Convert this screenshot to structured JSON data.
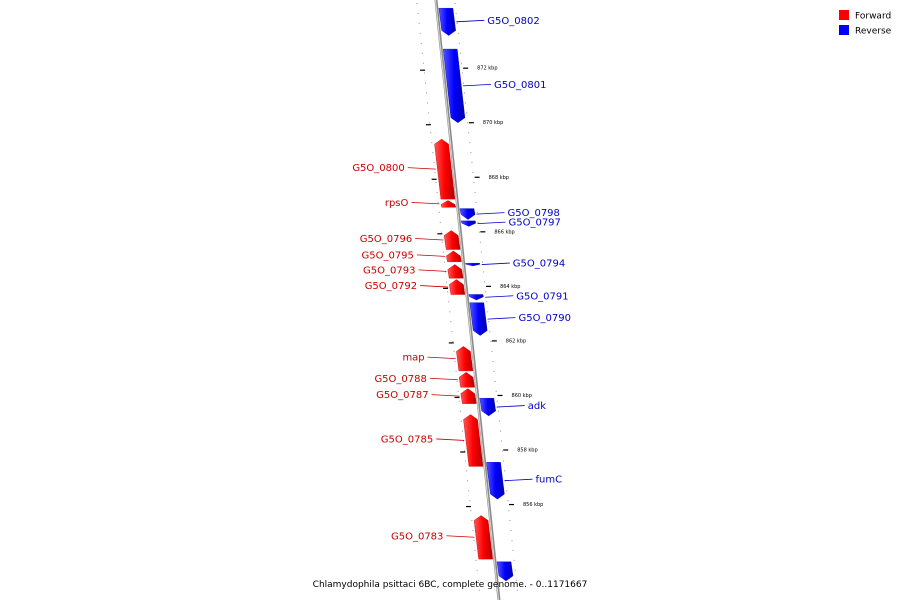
{
  "colors": {
    "forward": "#ff0000",
    "reverse": "#0000ff",
    "forward_text": "#cc0000",
    "reverse_text": "#0000cc",
    "axis": "#8a8a8a"
  },
  "legend": [
    {
      "label": "Forward",
      "color": "#ff0000"
    },
    {
      "label": "Reverse",
      "color": "#0000ff"
    }
  ],
  "caption": "Chlamydophila psittaci 6BC, complete genome. - 0..1171667",
  "ticks": [
    {
      "label": "872 kbp",
      "kbp": 872
    },
    {
      "label": "870 kbp",
      "kbp": 870
    },
    {
      "label": "868 kbp",
      "kbp": 868
    },
    {
      "label": "866 kbp",
      "kbp": 866
    },
    {
      "label": "864 kbp",
      "kbp": 864
    },
    {
      "label": "862 kbp",
      "kbp": 862
    },
    {
      "label": "860 kbp",
      "kbp": 860
    },
    {
      "label": "858 kbp",
      "kbp": 858
    },
    {
      "label": "856 kbp",
      "kbp": 856
    }
  ],
  "genes": [
    {
      "label": "G5O_0802",
      "strand": "reverse",
      "start_kbp": 873.2,
      "end_kbp": 874.2
    },
    {
      "label": "G5O_0801",
      "strand": "reverse",
      "start_kbp": 870.0,
      "end_kbp": 872.7
    },
    {
      "label": "G5O_0800",
      "strand": "forward",
      "start_kbp": 867.2,
      "end_kbp": 869.4
    },
    {
      "label": "rpsO",
      "strand": "forward",
      "start_kbp": 866.9,
      "end_kbp": 867.15
    },
    {
      "label": "G5O_0798",
      "strand": "reverse",
      "start_kbp": 866.45,
      "end_kbp": 866.85
    },
    {
      "label": "G5O_0797",
      "strand": "reverse",
      "start_kbp": 866.2,
      "end_kbp": 866.4
    },
    {
      "label": "G5O_0796",
      "strand": "forward",
      "start_kbp": 865.35,
      "end_kbp": 866.05
    },
    {
      "label": "G5O_0795",
      "strand": "forward",
      "start_kbp": 864.9,
      "end_kbp": 865.3
    },
    {
      "label": "G5O_0794",
      "strand": "reverse",
      "start_kbp": 864.75,
      "end_kbp": 864.85
    },
    {
      "label": "G5O_0793",
      "strand": "forward",
      "start_kbp": 864.3,
      "end_kbp": 864.8
    },
    {
      "label": "G5O_0792",
      "strand": "forward",
      "start_kbp": 863.7,
      "end_kbp": 864.25
    },
    {
      "label": "G5O_0791",
      "strand": "reverse",
      "start_kbp": 863.5,
      "end_kbp": 863.7
    },
    {
      "label": "G5O_0790",
      "strand": "reverse",
      "start_kbp": 862.2,
      "end_kbp": 863.4
    },
    {
      "label": "map",
      "strand": "forward",
      "start_kbp": 860.9,
      "end_kbp": 861.8
    },
    {
      "label": "G5O_0788",
      "strand": "forward",
      "start_kbp": 860.3,
      "end_kbp": 860.85
    },
    {
      "label": "G5O_0787",
      "strand": "forward",
      "start_kbp": 859.7,
      "end_kbp": 860.25
    },
    {
      "label": "adk",
      "strand": "reverse",
      "start_kbp": 859.25,
      "end_kbp": 859.9
    },
    {
      "label": "G5O_0785",
      "strand": "forward",
      "start_kbp": 857.4,
      "end_kbp": 859.3
    },
    {
      "label": "fumC",
      "strand": "reverse",
      "start_kbp": 856.2,
      "end_kbp": 857.55
    },
    {
      "label": "G5O_0783",
      "strand": "forward",
      "start_kbp": 854.0,
      "end_kbp": 855.6
    },
    {
      "label": "",
      "strand": "reverse",
      "start_kbp": 853.2,
      "end_kbp": 853.9
    }
  ]
}
